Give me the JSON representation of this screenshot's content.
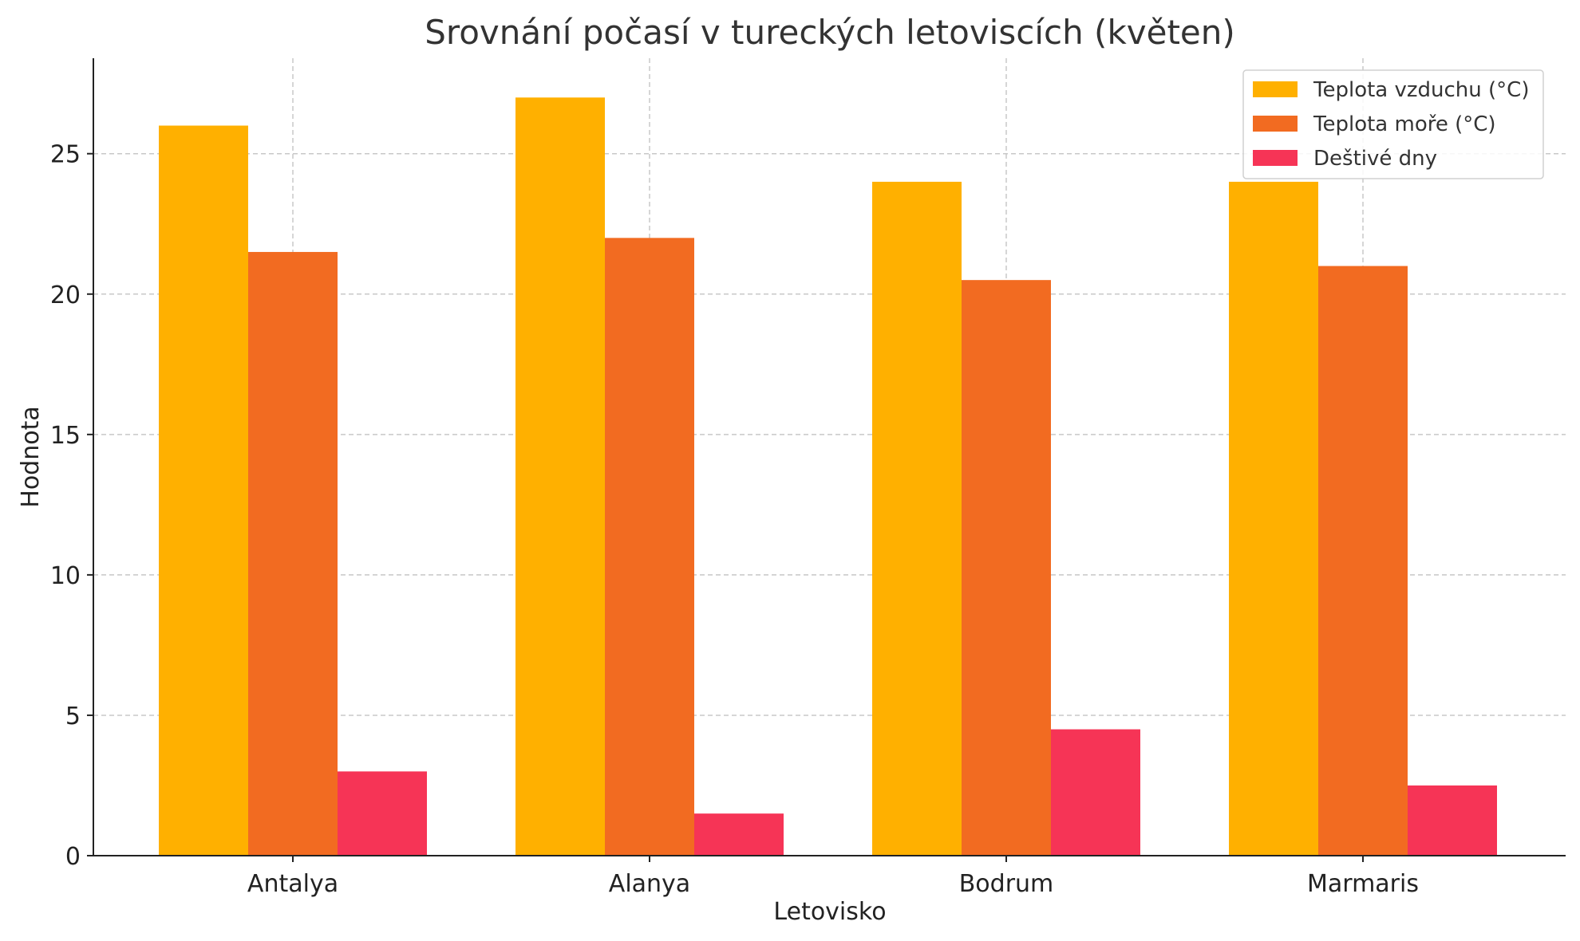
{
  "chart_data": {
    "type": "bar",
    "title": "Srovnání počasí v tureckých letoviscích (květen)",
    "xlabel": "Letovisko",
    "ylabel": "Hodnota",
    "categories": [
      "Antalya",
      "Alanya",
      "Bodrum",
      "Marmaris"
    ],
    "series": [
      {
        "name": "Teplota vzduchu (°C)",
        "color": "#FFB000",
        "values": [
          26,
          27,
          24,
          24
        ]
      },
      {
        "name": "Teplota moře (°C)",
        "color": "#F26B21",
        "values": [
          21.5,
          22,
          20.5,
          21
        ]
      },
      {
        "name": "Deštivé dny",
        "color": "#F63456",
        "values": [
          3,
          1.5,
          4.5,
          2.5
        ]
      }
    ],
    "ylim": [
      0,
      28.4
    ],
    "yticks": [
      0,
      5,
      10,
      15,
      20,
      25
    ],
    "grid": true,
    "legend_position": "top-right"
  }
}
